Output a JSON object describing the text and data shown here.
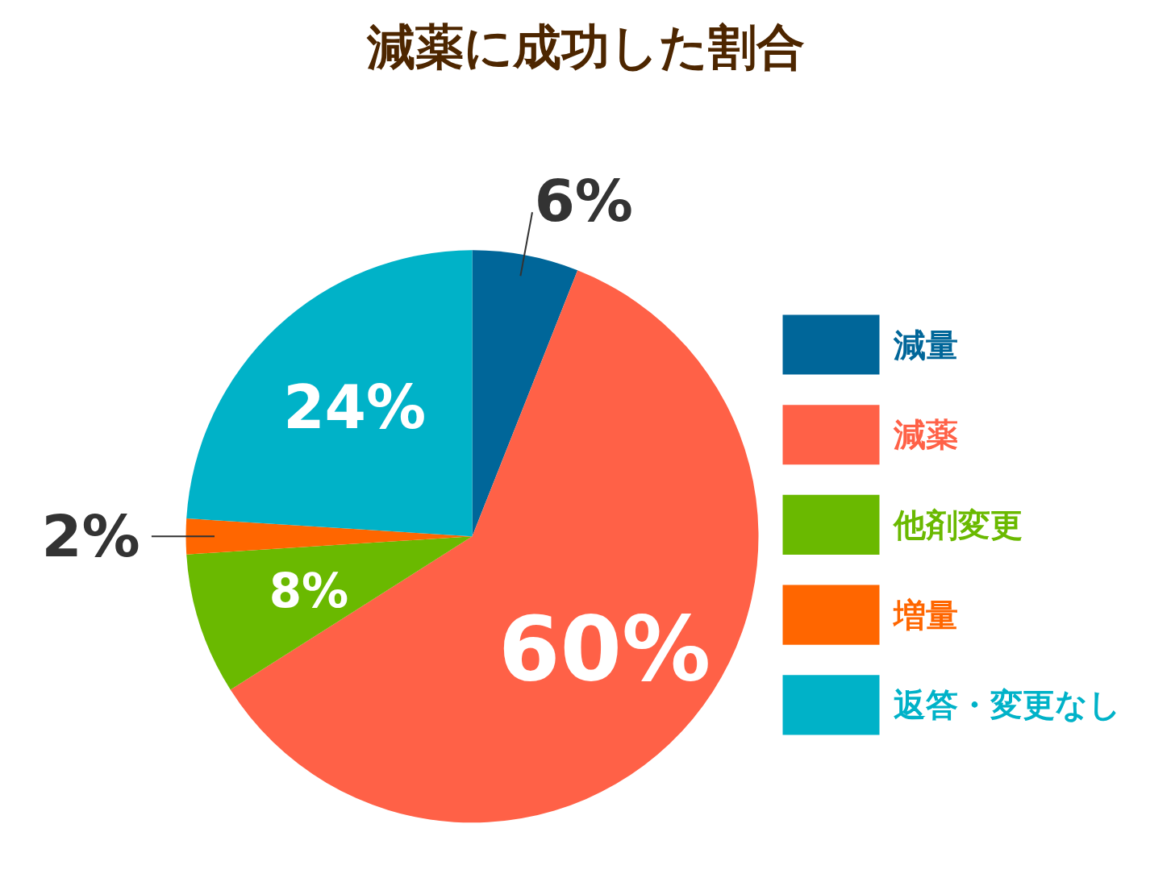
{
  "chart_data": {
    "type": "pie",
    "title": "減薬に成功した割合",
    "categories": [
      "減量",
      "減薬",
      "他剤変更",
      "増量",
      "返答・変更なし"
    ],
    "values": [
      6,
      60,
      8,
      2,
      24
    ],
    "colors": [
      "#006699",
      "#ff6147",
      "#6ab900",
      "#ff6600",
      "#00b2c8"
    ],
    "value_labels": [
      "6%",
      "60%",
      "8%",
      "2%",
      "24%"
    ],
    "legend": "right"
  }
}
